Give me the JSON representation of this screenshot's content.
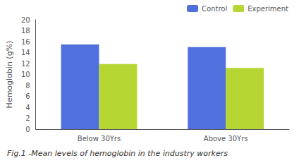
{
  "chart_data": {
    "type": "bar",
    "categories": [
      "Below 30Yrs",
      "Above 30Yrs"
    ],
    "series": [
      {
        "name": "Control",
        "values": [
          15.5,
          15.0
        ]
      },
      {
        "name": "Experiment",
        "values": [
          11.9,
          11.2
        ]
      }
    ],
    "ylabel": "Hemoglobin (g%)",
    "ylim": [
      0,
      20
    ],
    "yticks": [
      0,
      2,
      4,
      6,
      8,
      10,
      12,
      14,
      16,
      18,
      20
    ],
    "legend": "upper right",
    "grid": false,
    "caption": "Fig.1 -Mean levels of hemoglobin in the industry workers"
  }
}
